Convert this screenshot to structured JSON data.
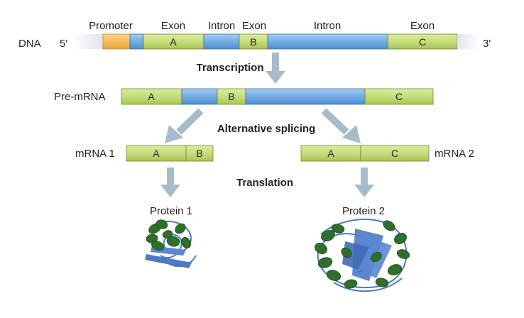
{
  "dna": {
    "label": "DNA",
    "five_prime": "5′",
    "three_prime": "3′",
    "headers": {
      "promoter": "Promoter",
      "exon_a": "Exon",
      "intron_1": "Intron",
      "exon_b": "Exon",
      "intron_2": "Intron",
      "exon_c": "Exon"
    },
    "segments": {
      "a": "A",
      "b": "B",
      "c": "C"
    }
  },
  "steps": {
    "transcription": "Transcription",
    "splicing": "Alternative splicing",
    "translation": "Translation"
  },
  "pre_mrna": {
    "label": "Pre-mRNA",
    "segments": {
      "a": "A",
      "b": "B",
      "c": "C"
    }
  },
  "mrna1": {
    "label": "mRNA 1",
    "segments": {
      "a": "A",
      "b": "B"
    }
  },
  "mrna2": {
    "label": "mRNA 2",
    "segments": {
      "a": "A",
      "c": "C"
    }
  },
  "proteins": {
    "protein1": "Protein 1",
    "protein2": "Protein 2"
  },
  "colors": {
    "exon_fill": "#c6dc7a",
    "exon_stroke": "#6f8a1f",
    "intron_fill": "#74ade3",
    "intron_stroke": "#3a6ea8",
    "promoter_fill": "#f8bd5e",
    "flank_fill": "#e7ecef",
    "arrow": "#a6bccb",
    "helix": "#2f6e2b",
    "sheet": "#4d79c7"
  }
}
